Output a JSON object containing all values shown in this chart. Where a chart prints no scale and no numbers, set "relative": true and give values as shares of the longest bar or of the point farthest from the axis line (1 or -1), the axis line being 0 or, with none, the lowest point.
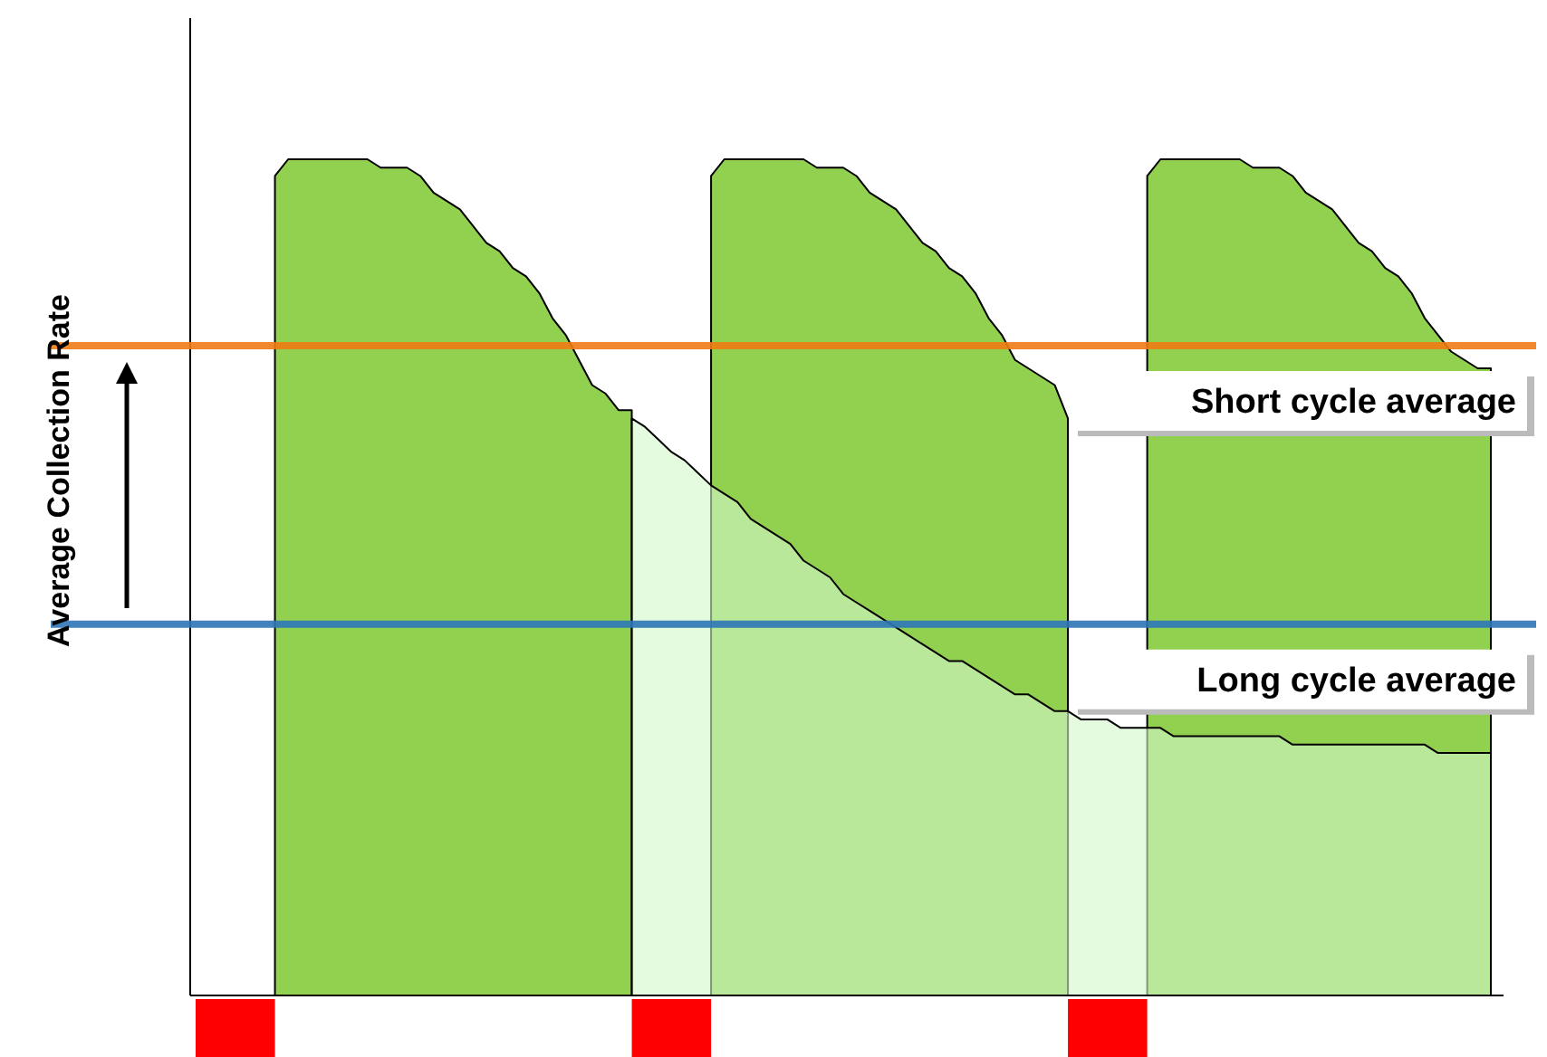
{
  "chart_data": {
    "type": "area",
    "relative": true,
    "ylabel": "Average Collection Rate",
    "categories": [
      null,
      null,
      null,
      null,
      null,
      null,
      null,
      null,
      null,
      null,
      null,
      null,
      null,
      null,
      null,
      null,
      null,
      null,
      null,
      null,
      null,
      null,
      null,
      null,
      null,
      null,
      null,
      null,
      null,
      null,
      null,
      null,
      null,
      null,
      null,
      null,
      null,
      null,
      null,
      null,
      null,
      null,
      null,
      null,
      null,
      null,
      null,
      null,
      null,
      null,
      null,
      null,
      null,
      null,
      null,
      null,
      null,
      null,
      null,
      null,
      null,
      null,
      null,
      null,
      null,
      null,
      null,
      null,
      null,
      null,
      null,
      null,
      null,
      null,
      null,
      null,
      null,
      null,
      null,
      null,
      null,
      null,
      null,
      null,
      null,
      null,
      null,
      null,
      null,
      null,
      null,
      null,
      null,
      null,
      null,
      null,
      null,
      null,
      null
    ],
    "series": [
      {
        "color": "#92d050",
        "values": [
          null,
          null,
          null,
          null,
          null,
          null,
          0.98,
          1,
          1,
          1,
          1,
          1,
          1,
          1,
          0.99,
          0.99,
          0.99,
          0.98,
          0.96,
          0.95,
          0.94,
          0.92,
          0.9,
          0.89,
          0.87,
          0.86,
          0.84,
          0.81,
          0.79,
          0.76,
          0.73,
          0.72,
          0.7,
          0.7,
          null,
          null,
          null,
          null,
          null,
          null,
          null,
          null,
          null,
          null,
          null,
          null,
          null,
          null,
          null,
          null,
          null,
          null,
          null,
          null,
          null,
          null,
          null,
          null,
          null,
          null,
          null,
          null,
          null,
          null,
          null,
          null,
          null,
          null,
          null,
          null,
          null,
          null,
          null,
          null,
          null,
          null,
          null,
          null,
          null,
          null,
          null,
          null,
          null,
          null,
          null,
          null,
          null,
          null,
          null,
          null,
          null,
          null,
          null,
          null,
          null,
          null,
          null,
          null,
          null
        ]
      },
      {
        "color": "#92d050",
        "values": [
          null,
          null,
          null,
          null,
          null,
          null,
          null,
          null,
          null,
          null,
          null,
          null,
          null,
          null,
          null,
          null,
          null,
          null,
          null,
          null,
          null,
          null,
          null,
          null,
          null,
          null,
          null,
          null,
          null,
          null,
          null,
          null,
          null,
          null,
          null,
          null,
          null,
          null,
          null,
          0.98,
          1,
          1,
          1,
          1,
          1,
          1,
          1,
          0.99,
          0.99,
          0.99,
          0.98,
          0.96,
          0.95,
          0.94,
          0.92,
          0.9,
          0.89,
          0.87,
          0.86,
          0.84,
          0.81,
          0.79,
          0.76,
          0.75,
          0.74,
          0.73,
          0.69,
          null,
          null,
          null,
          null,
          null,
          null,
          null,
          null,
          null,
          null,
          null,
          null,
          null,
          null,
          null,
          null,
          null,
          null,
          null,
          null,
          null,
          null,
          null,
          null,
          null,
          null,
          null,
          null,
          null,
          null,
          null,
          null
        ]
      },
      {
        "color": "#92d050",
        "values": [
          null,
          null,
          null,
          null,
          null,
          null,
          null,
          null,
          null,
          null,
          null,
          null,
          null,
          null,
          null,
          null,
          null,
          null,
          null,
          null,
          null,
          null,
          null,
          null,
          null,
          null,
          null,
          null,
          null,
          null,
          null,
          null,
          null,
          null,
          null,
          null,
          null,
          null,
          null,
          null,
          null,
          null,
          null,
          null,
          null,
          null,
          null,
          null,
          null,
          null,
          null,
          null,
          null,
          null,
          null,
          null,
          null,
          null,
          null,
          null,
          null,
          null,
          null,
          null,
          null,
          null,
          null,
          null,
          null,
          null,
          null,
          null,
          0.98,
          1,
          1,
          1,
          1,
          1,
          1,
          1,
          0.99,
          0.99,
          0.99,
          0.98,
          0.96,
          0.95,
          0.94,
          0.92,
          0.9,
          0.89,
          0.87,
          0.86,
          0.84,
          0.81,
          0.79,
          0.77,
          0.76,
          0.75,
          0.75
        ]
      },
      {
        "color": "#d3f8cb",
        "values": [
          null,
          null,
          null,
          null,
          null,
          null,
          null,
          null,
          null,
          null,
          null,
          null,
          null,
          null,
          null,
          null,
          null,
          null,
          null,
          null,
          null,
          null,
          null,
          null,
          null,
          null,
          null,
          null,
          null,
          null,
          null,
          null,
          null,
          0.69,
          0.68,
          0.665,
          0.65,
          0.64,
          0.625,
          0.61,
          0.6,
          0.59,
          0.57,
          0.56,
          0.55,
          0.54,
          0.52,
          0.51,
          0.5,
          0.48,
          0.47,
          0.46,
          0.45,
          0.44,
          0.43,
          0.42,
          0.41,
          0.4,
          0.4,
          0.39,
          0.38,
          0.37,
          0.36,
          0.36,
          0.35,
          0.34,
          0.34,
          0.33,
          0.33,
          0.33,
          0.32,
          0.32,
          0.32,
          0.32,
          0.31,
          0.31,
          0.31,
          0.31,
          0.31,
          0.31,
          0.31,
          0.31,
          0.31,
          0.3,
          0.3,
          0.3,
          0.3,
          0.3,
          0.3,
          0.3,
          0.3,
          0.3,
          0.3,
          0.3,
          0.29,
          0.29,
          0.29,
          0.29,
          0.29
        ]
      }
    ],
    "ref_lines": [
      {
        "axis": "y",
        "value": 0.777,
        "label": "Short cycle average",
        "color": "#f07b14"
      },
      {
        "axis": "y",
        "value": 0.444,
        "label": "Long cycle average",
        "color": "#2e75b6"
      }
    ]
  }
}
